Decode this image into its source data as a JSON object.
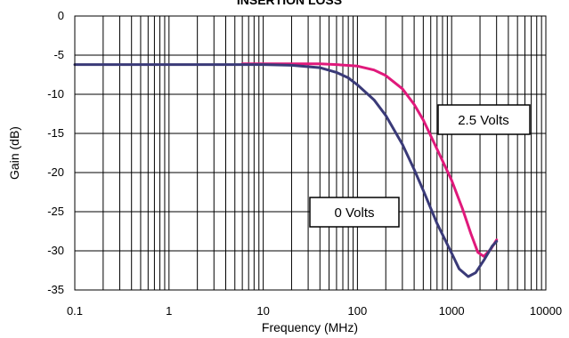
{
  "chart_data": {
    "type": "line",
    "title": "INSERTION LOSS",
    "xlabel": "Frequency (MHz)",
    "ylabel": "Gain (dB)",
    "x_scale": "log",
    "xlim": [
      0.1,
      10000
    ],
    "ylim": [
      -35,
      0
    ],
    "x_ticks": [
      "0.1",
      "1",
      "10",
      "100",
      "1000",
      "10000"
    ],
    "y_ticks": [
      "0",
      "-5",
      "-10",
      "-15",
      "-20",
      "-25",
      "-30",
      "-35"
    ],
    "grid": true,
    "series": [
      {
        "name": "2.5 Volts",
        "color": "#e0197b",
        "x": [
          6,
          10,
          20,
          40,
          60,
          100,
          150,
          200,
          300,
          400,
          500,
          700,
          1000,
          1300,
          1600,
          1900,
          2200,
          2600,
          3000
        ],
        "y": [
          -6.1,
          -6.1,
          -6.1,
          -6.1,
          -6.2,
          -6.4,
          -6.9,
          -7.6,
          -9.3,
          -11.3,
          -13.3,
          -17.0,
          -21.0,
          -24.6,
          -27.8,
          -30.2,
          -30.7,
          -29.8,
          -28.6
        ]
      },
      {
        "name": "0 Volts",
        "color": "#3a3a78",
        "x": [
          0.1,
          1,
          6,
          10,
          20,
          40,
          60,
          80,
          100,
          150,
          200,
          300,
          400,
          500,
          700,
          1000,
          1200,
          1500,
          1800,
          2200,
          2700,
          3000
        ],
        "y": [
          -6.2,
          -6.2,
          -6.2,
          -6.2,
          -6.3,
          -6.6,
          -7.2,
          -7.9,
          -8.8,
          -10.7,
          -12.7,
          -16.4,
          -19.6,
          -22.3,
          -26.5,
          -30.3,
          -32.3,
          -33.3,
          -32.8,
          -31.2,
          -29.4,
          -28.8
        ]
      }
    ],
    "annotations": [
      {
        "text": "2.5 Volts",
        "series": 0
      },
      {
        "text": "0 Volts",
        "series": 1
      }
    ]
  }
}
